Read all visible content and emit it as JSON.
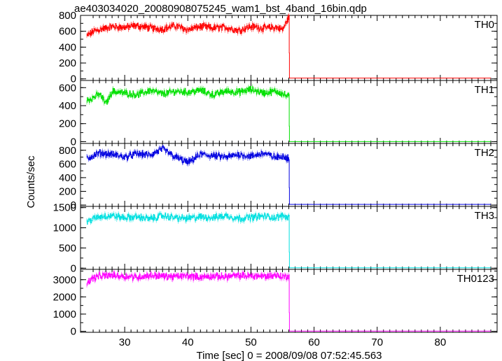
{
  "chart_data": {
    "type": "line",
    "title": "ae403034020_20080908075245_wam1_bst_4band_16bin.qdp",
    "xlabel": "Time [sec] 0 = 2008/09/08 07:52:45.563",
    "ylabel": "Counts/sec",
    "xlim": [
      23,
      89
    ],
    "x_ticks": [
      30,
      40,
      50,
      60,
      70,
      80
    ],
    "x_tick_labels": [
      "30",
      "40",
      "50",
      "60",
      "70",
      "80"
    ],
    "grid": false,
    "error_bars": true,
    "series_span": {
      "start": 24,
      "drop": 56.1,
      "end": 88
    },
    "panels": [
      {
        "label": "TH0",
        "color": "#ff0000",
        "ylim": [
          -20,
          800
        ],
        "y_ticks": [
          0,
          200,
          400,
          600,
          800
        ],
        "y_tick_labels": [
          "0",
          "200",
          "400",
          "600",
          "800"
        ],
        "x": [
          24,
          25,
          26,
          28,
          30,
          32,
          34,
          36,
          38,
          40,
          42,
          44,
          46,
          48,
          50,
          52,
          54,
          55,
          56,
          56.1,
          60,
          70,
          80,
          88
        ],
        "values": [
          540,
          600,
          620,
          660,
          650,
          670,
          640,
          630,
          670,
          620,
          660,
          640,
          650,
          610,
          660,
          640,
          650,
          620,
          780,
          10,
          10,
          10,
          10,
          10
        ]
      },
      {
        "label": "TH1",
        "color": "#00e000",
        "ylim": [
          -20,
          680
        ],
        "y_ticks": [
          0,
          200,
          400,
          600
        ],
        "y_tick_labels": [
          "0",
          "200",
          "400",
          "600"
        ],
        "x": [
          24,
          25,
          26,
          27,
          28,
          30,
          32,
          34,
          36,
          38,
          40,
          42,
          44,
          46,
          48,
          50,
          52,
          54,
          55,
          56,
          56.1,
          60,
          70,
          80,
          88
        ],
        "values": [
          460,
          490,
          530,
          420,
          560,
          540,
          520,
          570,
          530,
          560,
          550,
          570,
          520,
          560,
          550,
          580,
          540,
          560,
          530,
          500,
          0,
          0,
          0,
          0,
          0
        ]
      },
      {
        "label": "TH2",
        "color": "#0000e0",
        "ylim": [
          -20,
          900
        ],
        "y_ticks": [
          0,
          200,
          400,
          600,
          800
        ],
        "y_tick_labels": [
          "0",
          "200",
          "400",
          "600",
          "800"
        ],
        "x": [
          24,
          25,
          26,
          28,
          30,
          32,
          34,
          36,
          38,
          40,
          42,
          44,
          46,
          48,
          50,
          52,
          54,
          55,
          56,
          56.1,
          60,
          70,
          80,
          88
        ],
        "values": [
          680,
          720,
          760,
          740,
          700,
          750,
          730,
          820,
          700,
          620,
          740,
          720,
          700,
          740,
          710,
          760,
          690,
          720,
          680,
          10,
          10,
          10,
          10,
          10
        ]
      },
      {
        "label": "TH3",
        "color": "#00e0e0",
        "ylim": [
          -30,
          1530
        ],
        "y_ticks": [
          0,
          500,
          1000,
          1500
        ],
        "y_tick_labels": [
          "0",
          "500",
          "1000",
          "1500"
        ],
        "x": [
          24,
          25,
          26,
          28,
          30,
          32,
          34,
          36,
          38,
          40,
          42,
          44,
          46,
          48,
          50,
          52,
          54,
          55,
          56,
          56.1,
          60,
          70,
          80,
          88
        ],
        "values": [
          1150,
          1220,
          1280,
          1300,
          1250,
          1270,
          1220,
          1300,
          1250,
          1230,
          1270,
          1250,
          1300,
          1230,
          1260,
          1290,
          1250,
          1300,
          1250,
          10,
          10,
          10,
          10,
          10
        ]
      },
      {
        "label": "TH0123",
        "color": "#ff00ff",
        "ylim": [
          -60,
          3600
        ],
        "y_ticks": [
          0,
          1000,
          2000,
          3000
        ],
        "y_tick_labels": [
          "0",
          "1000",
          "2000",
          "3000"
        ],
        "x": [
          24,
          25,
          26,
          28,
          30,
          32,
          34,
          36,
          38,
          40,
          42,
          44,
          46,
          48,
          50,
          52,
          54,
          55,
          56,
          56.1,
          60,
          70,
          80,
          88
        ],
        "values": [
          2850,
          3100,
          3200,
          3250,
          3200,
          3150,
          3250,
          3200,
          3180,
          3220,
          3150,
          3200,
          3180,
          3230,
          3220,
          3200,
          3250,
          3180,
          3200,
          10,
          10,
          10,
          10,
          10
        ]
      }
    ]
  }
}
